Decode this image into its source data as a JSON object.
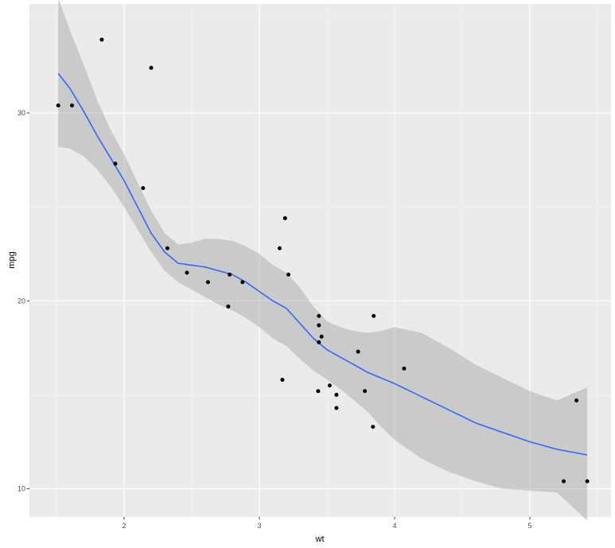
{
  "chart_data": {
    "type": "scatter",
    "xlabel": "wt",
    "ylabel": "mpg",
    "xlim": [
      1.3,
      5.6
    ],
    "ylim": [
      8.5,
      35.8
    ],
    "x_ticks": [
      2,
      3,
      4,
      5
    ],
    "x_tick_labels": [
      "2",
      "3",
      "4",
      "5"
    ],
    "x_minor_ticks": [
      1.5,
      2.5,
      3.5,
      4.5,
      5.5
    ],
    "y_ticks": [
      10,
      20,
      30
    ],
    "y_tick_labels": [
      "10",
      "20",
      "30"
    ],
    "y_minor_ticks": [
      15,
      25,
      35
    ],
    "grid": true,
    "points": {
      "x": [
        1.513,
        1.615,
        1.835,
        1.935,
        2.14,
        2.2,
        2.32,
        2.465,
        2.62,
        2.77,
        2.78,
        2.875,
        3.15,
        3.17,
        3.19,
        3.215,
        3.435,
        3.44,
        3.44,
        3.44,
        3.46,
        3.52,
        3.57,
        3.57,
        3.73,
        3.78,
        3.84,
        3.845,
        4.07,
        5.25,
        5.345,
        5.424
      ],
      "y": [
        30.4,
        30.4,
        33.9,
        27.3,
        26.0,
        32.4,
        22.8,
        21.5,
        21.0,
        19.7,
        21.4,
        21.0,
        22.8,
        15.8,
        24.4,
        21.4,
        15.2,
        19.2,
        18.7,
        17.8,
        18.1,
        15.5,
        15.0,
        14.3,
        17.3,
        15.2,
        13.3,
        19.2,
        16.4,
        10.4,
        14.7,
        10.4
      ]
    },
    "smooth": {
      "method": "loess",
      "x": [
        1.513,
        1.6,
        1.7,
        1.8,
        1.9,
        2.0,
        2.1,
        2.2,
        2.3,
        2.4,
        2.5,
        2.6,
        2.7,
        2.8,
        2.9,
        3.0,
        3.1,
        3.2,
        3.3,
        3.4,
        3.5,
        3.6,
        3.7,
        3.8,
        3.9,
        4.0,
        4.2,
        4.4,
        4.6,
        4.8,
        5.0,
        5.2,
        5.424
      ],
      "y": [
        32.1,
        31.3,
        30.1,
        28.8,
        27.6,
        26.4,
        25.0,
        23.6,
        22.6,
        22.0,
        21.9,
        21.8,
        21.6,
        21.4,
        21.0,
        20.5,
        20.0,
        19.6,
        18.8,
        18.0,
        17.4,
        17.0,
        16.6,
        16.2,
        15.9,
        15.6,
        14.9,
        14.2,
        13.5,
        13.0,
        12.5,
        12.1,
        11.8
      ],
      "lower": [
        28.2,
        28.1,
        27.7,
        27.0,
        26.1,
        25.0,
        23.8,
        22.6,
        21.6,
        21.0,
        20.6,
        20.2,
        19.8,
        19.5,
        19.1,
        18.6,
        18.0,
        17.6,
        16.9,
        16.3,
        15.8,
        15.3,
        14.7,
        14.1,
        13.3,
        12.6,
        11.6,
        10.9,
        10.4,
        10.0,
        9.9,
        9.8,
        8.3
      ],
      "upper": [
        36.1,
        34.4,
        32.6,
        30.7,
        29.1,
        27.8,
        26.3,
        24.8,
        23.6,
        23.0,
        23.1,
        23.3,
        23.3,
        23.2,
        22.9,
        22.5,
        21.9,
        21.5,
        20.7,
        19.7,
        18.9,
        18.6,
        18.4,
        18.3,
        18.4,
        18.6,
        18.3,
        17.5,
        16.6,
        15.9,
        15.2,
        14.7,
        15.4
      ]
    }
  },
  "colors": {
    "panel_background": "#ebebeb",
    "grid": "#ffffff",
    "line": "#3366ff",
    "ribbon": "#999999",
    "points": "#000000"
  }
}
